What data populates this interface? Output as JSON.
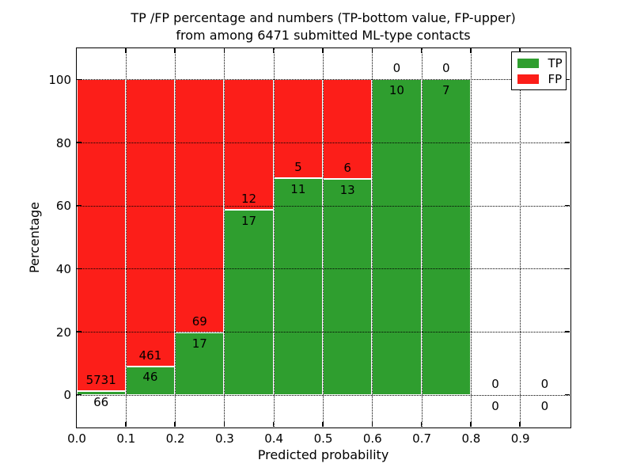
{
  "title": {
    "line1": "TP /FP percentage and numbers (TP-bottom value, FP-upper)",
    "line2": "from among 6471 submitted ML-type contacts"
  },
  "axes": {
    "xlabel": "Predicted probability",
    "ylabel": "Percentage"
  },
  "legend": {
    "position": "upper right",
    "items": [
      {
        "label": "TP",
        "color": "#2f9e2f"
      },
      {
        "label": "FP",
        "color": "#fc1e19"
      }
    ]
  },
  "chart_data": {
    "type": "bar",
    "stacked": true,
    "title": "TP /FP percentage and numbers (TP-bottom value, FP-upper) from among 6471 submitted ML-type contacts",
    "xlabel": "Predicted probability",
    "ylabel": "Percentage",
    "total_contacts": 6471,
    "xlim": [
      0.0,
      1.0
    ],
    "ylim": [
      -10,
      110
    ],
    "grid": true,
    "legend_position": "upper right",
    "x_ticks": [
      0.0,
      0.1,
      0.2,
      0.3,
      0.4,
      0.5,
      0.6,
      0.7,
      0.8,
      0.9
    ],
    "x_tick_labels": [
      "0.0",
      "0.1",
      "0.2",
      "0.3",
      "0.4",
      "0.5",
      "0.6",
      "0.7",
      "0.8",
      "0.9"
    ],
    "y_ticks": [
      0,
      20,
      40,
      60,
      80,
      100
    ],
    "y_tick_labels": [
      "0",
      "20",
      "40",
      "60",
      "80",
      "100"
    ],
    "bin_width": 0.1,
    "bin_starts": [
      0.0,
      0.1,
      0.2,
      0.3,
      0.4,
      0.5,
      0.6,
      0.7,
      0.8,
      0.9
    ],
    "series": [
      {
        "name": "TP",
        "color": "#2f9e2f",
        "counts": [
          66,
          46,
          17,
          17,
          11,
          13,
          10,
          7,
          0,
          0
        ]
      },
      {
        "name": "FP",
        "color": "#fc1e19",
        "counts": [
          5731,
          461,
          69,
          12,
          5,
          6,
          0,
          0,
          0,
          0
        ]
      }
    ],
    "tp_percent": [
      1.14,
      9.07,
      19.77,
      58.62,
      68.75,
      68.42,
      100.0,
      100.0,
      0.0,
      0.0
    ],
    "fp_percent": [
      98.86,
      90.93,
      80.23,
      41.38,
      31.25,
      31.58,
      0.0,
      0.0,
      0.0,
      0.0
    ]
  }
}
